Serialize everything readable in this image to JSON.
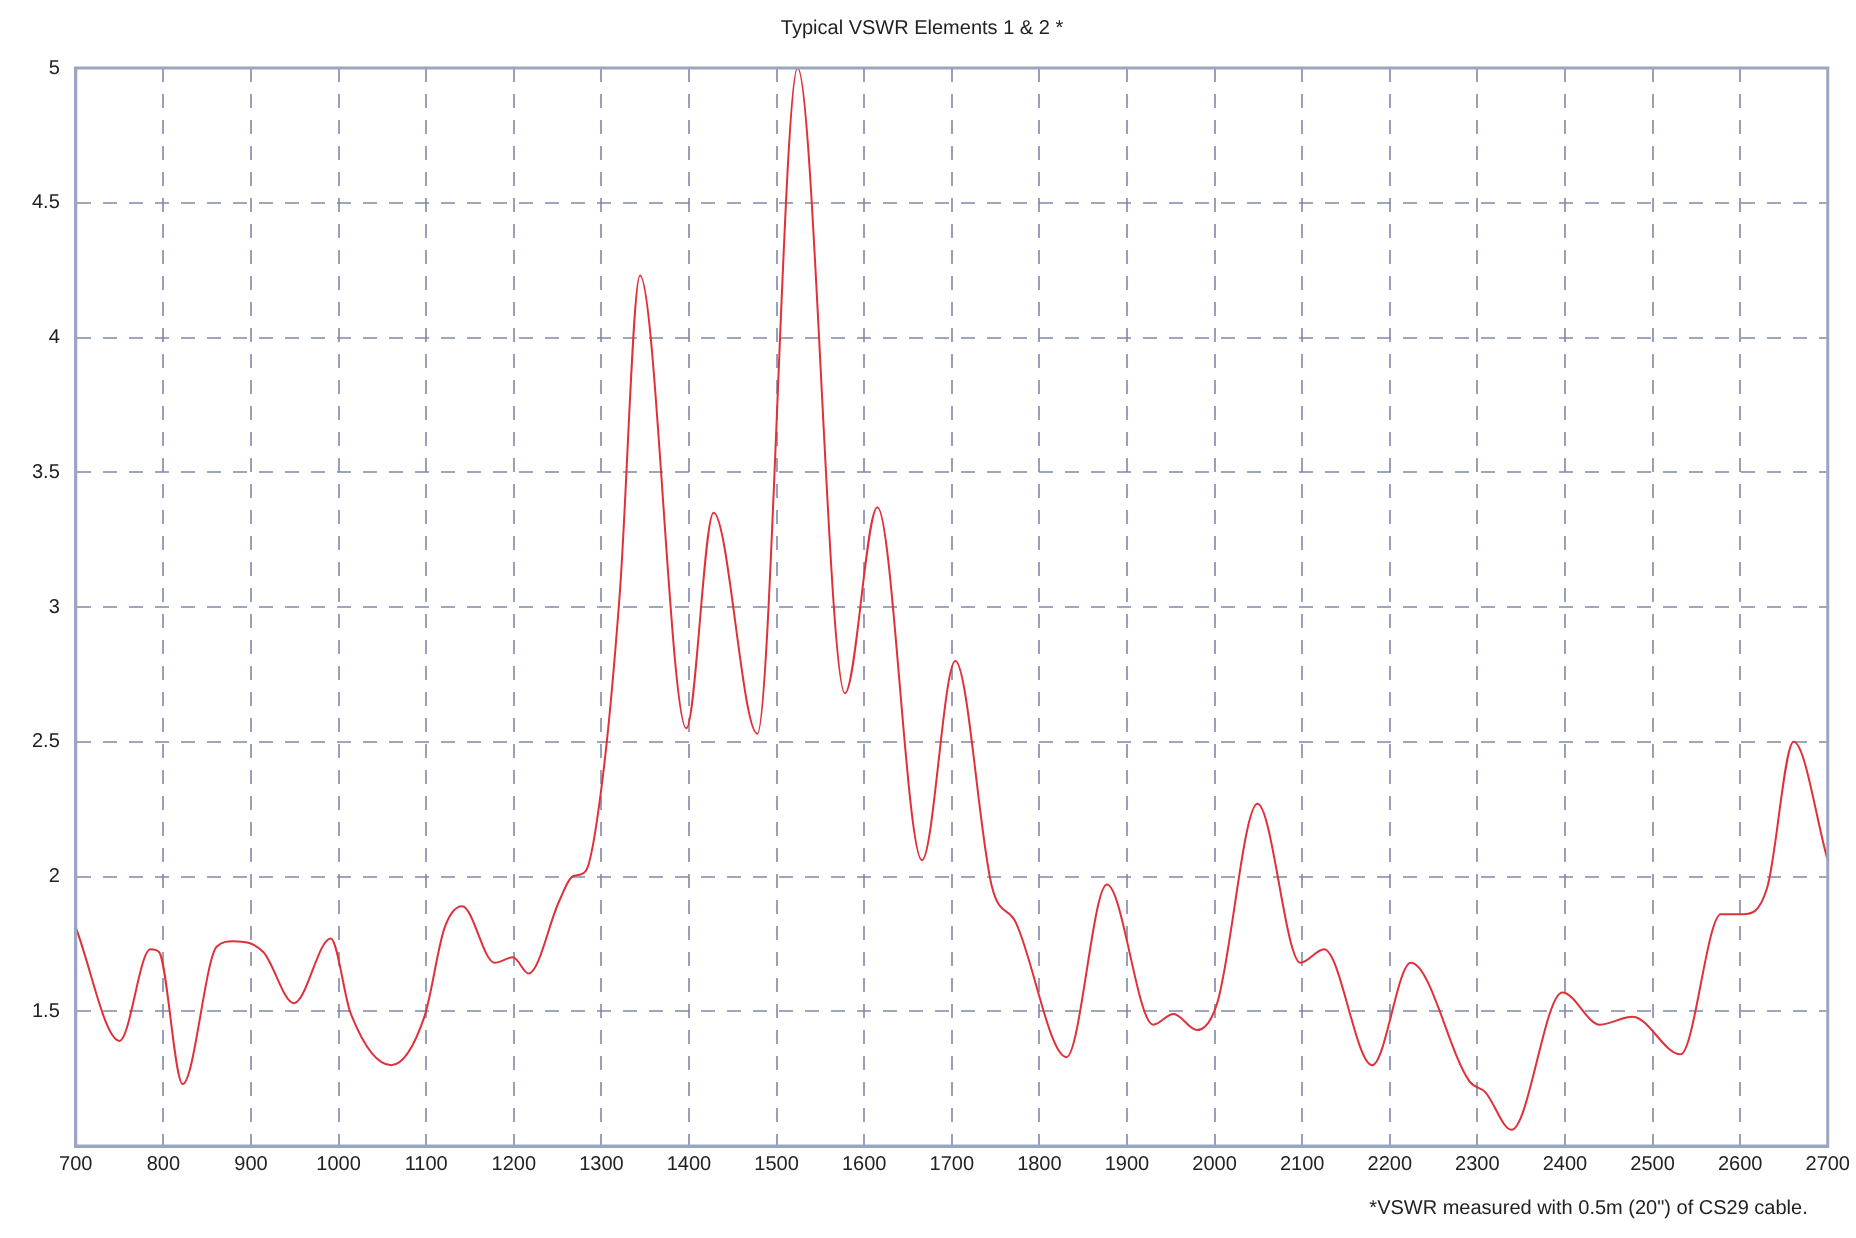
{
  "chart_data": {
    "type": "line",
    "title": "Typical VSWR Elements 1 & 2 *",
    "annotations": [
      "*VSWR measured with 0.5m (20\") of CS29 cable."
    ],
    "xlim": [
      700,
      2700
    ],
    "xticks": [
      700,
      800,
      900,
      1000,
      1100,
      1200,
      1300,
      1400,
      1500,
      1600,
      1700,
      1800,
      1900,
      2000,
      2100,
      2200,
      2300,
      2400,
      2500,
      2600,
      2700
    ],
    "ylim": [
      1,
      5
    ],
    "yticks": [
      1.5,
      2,
      2.5,
      3,
      3.5,
      4,
      4.5,
      5
    ],
    "grid": true,
    "marker": "none",
    "line_style": "solid",
    "legend": false,
    "series": [
      {
        "color": "#e0303a",
        "x": [
          700,
          750,
          785,
          795,
          822,
          861,
          880,
          914,
          949,
          991,
          1014,
          1060,
          1098,
          1121,
          1141,
          1178,
          1199,
          1217,
          1252,
          1267,
          1282,
          1302,
          1321,
          1344,
          1397,
          1428,
          1478,
          1524,
          1578,
          1615,
          1666,
          1704,
          1746,
          1773,
          1831,
          1877,
          1930,
          1953,
          1980,
          2003,
          2049,
          2098,
          2125,
          2180,
          2224,
          2291,
          2309,
          2339,
          2397,
          2440,
          2477,
          2532,
          2578,
          2603,
          2631,
          2661,
          2700
        ],
        "values": [
          1.81,
          1.39,
          1.73,
          1.72,
          1.23,
          1.74,
          1.76,
          1.72,
          1.53,
          1.77,
          1.49,
          1.3,
          1.48,
          1.81,
          1.89,
          1.68,
          1.7,
          1.64,
          1.91,
          2.0,
          2.02,
          2.38,
          3.05,
          4.23,
          2.55,
          3.35,
          2.53,
          5.0,
          2.68,
          3.37,
          2.06,
          2.8,
          1.96,
          1.83,
          1.33,
          1.97,
          1.45,
          1.49,
          1.43,
          1.53,
          2.27,
          1.68,
          1.73,
          1.3,
          1.68,
          1.24,
          1.2,
          1.06,
          1.57,
          1.45,
          1.48,
          1.34,
          1.86,
          1.86,
          1.96,
          2.5,
          2.06
        ]
      }
    ]
  }
}
